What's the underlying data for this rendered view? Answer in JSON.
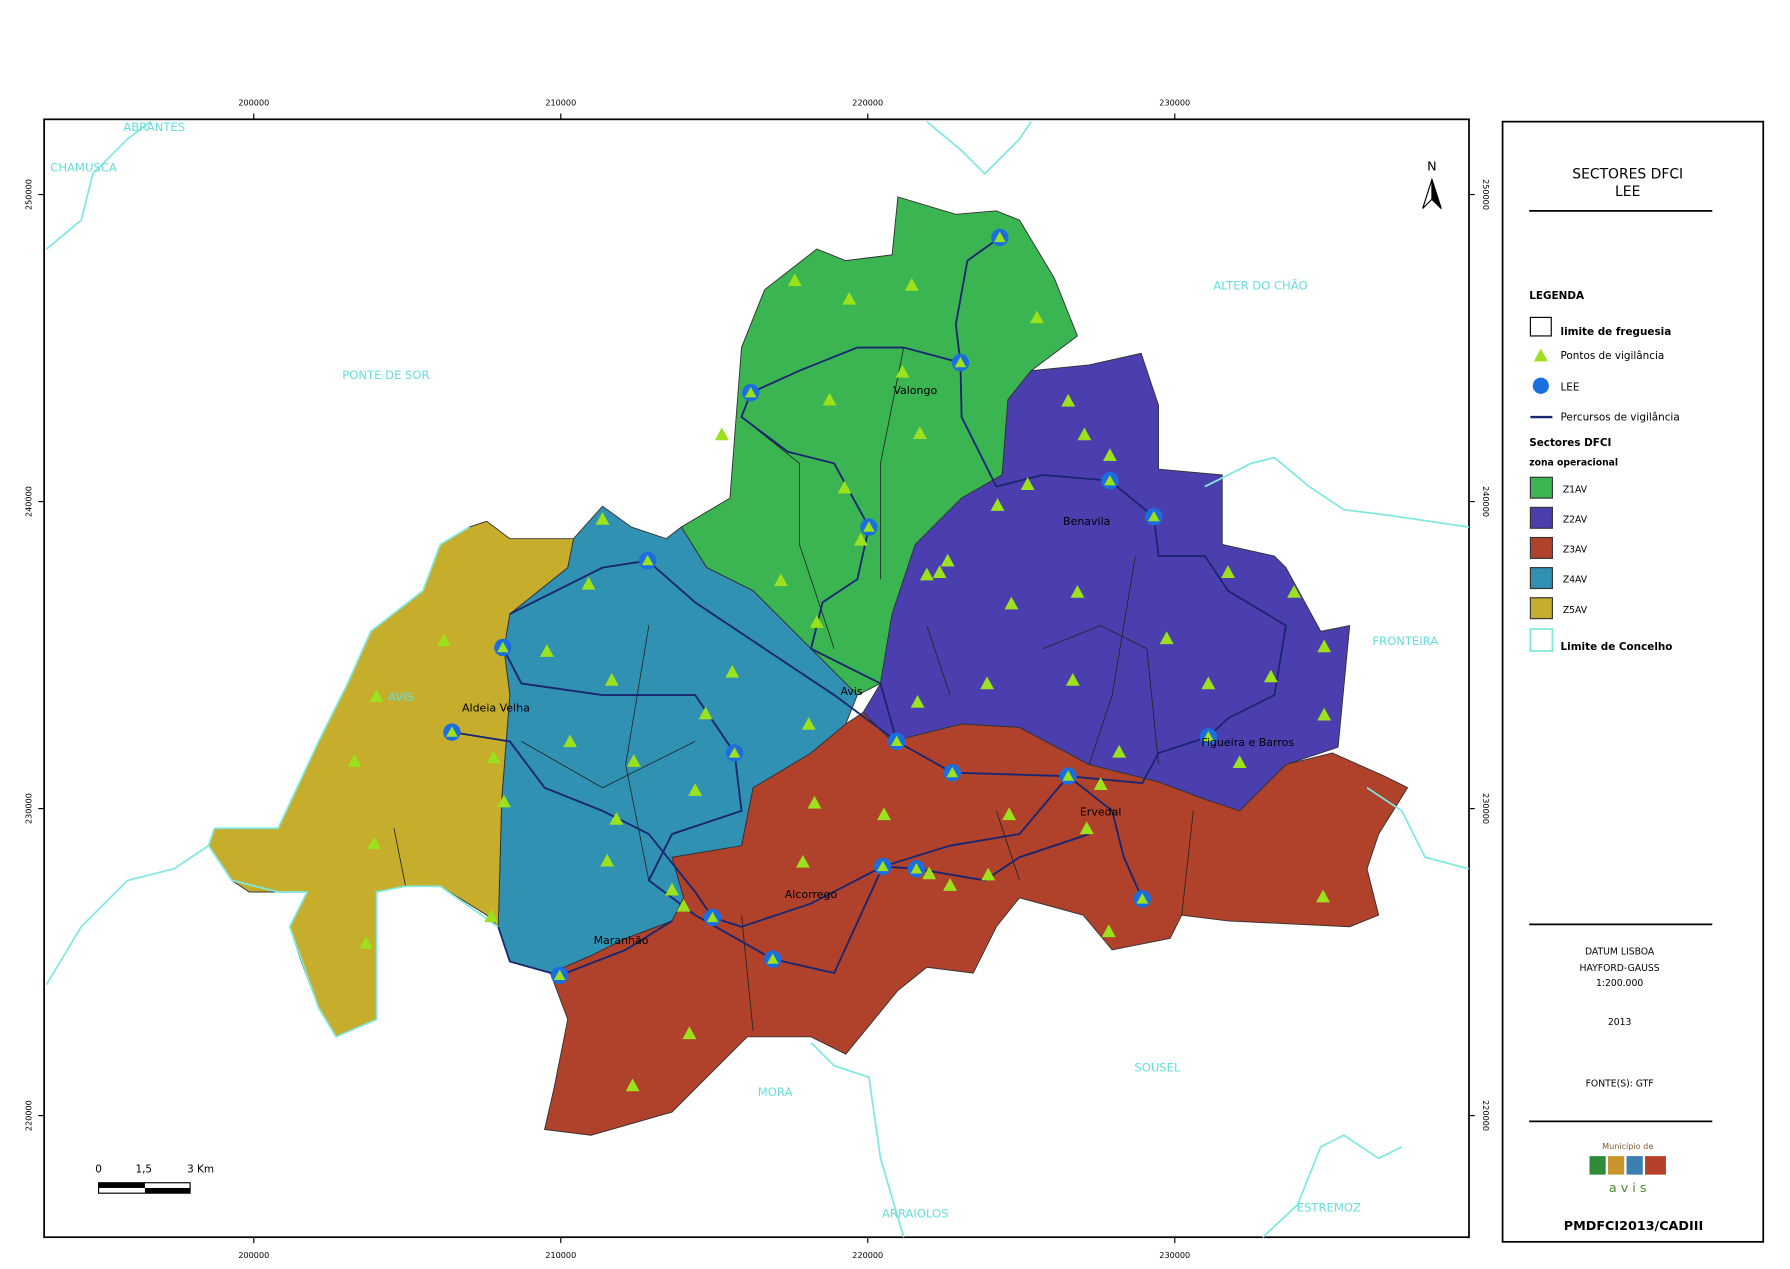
{
  "legend": {
    "title": "SECTORES DFCI",
    "subtitle": "LEE",
    "heading": "LEGENDA",
    "items": [
      "limite de freguesia",
      "Pontos de vigilância",
      "LEE",
      "Percursos de vigilância"
    ],
    "sectors_heading": "Sectores DFCI",
    "sectors_subheading": "zona operacional",
    "sectors": [
      {
        "name": "Z1AV",
        "color": "#3bb552"
      },
      {
        "name": "Z2AV",
        "color": "#4b3fb0"
      },
      {
        "name": "Z3AV",
        "color": "#b0412b"
      },
      {
        "name": "Z4AV",
        "color": "#3091b3"
      },
      {
        "name": "Z5AV",
        "color": "#c7ad2c"
      }
    ],
    "concelho": "Limite de Concelho"
  },
  "footer": {
    "datum": "DATUM LISBOA",
    "projection": "HAYFORD-GAUSS",
    "scale": "1:200.000",
    "year": "2013",
    "source": "FONTE(S): GTF",
    "logo_top": "Município de",
    "logo_name": "a v i s",
    "code": "PMDFCI2013/CADIII"
  },
  "places": [
    "ABRANTES",
    "CHAMUSCA",
    "PONTE DE SOR",
    "ALTER DO CHÃO",
    "FRONTEIRA",
    "AVIS",
    "SOUSEL",
    "MORA",
    "ARRAIOLOS",
    "ESTREMOZ",
    "Valongo",
    "Benavila",
    "Avis",
    "Aldeia Velha",
    "Figueira e Barros",
    "Ervedal",
    "Alcorrego",
    "Maranhão"
  ],
  "north": "N",
  "scale_bar": [
    "0",
    "1,5",
    "3 Km"
  ],
  "grid": {
    "xlim": [
      193170,
      239585
    ],
    "ylim": [
      216040,
      252450
    ],
    "xticks": [
      200000,
      210000,
      220000,
      230000
    ],
    "yticks": [
      220000,
      230000,
      240000,
      250000
    ]
  }
}
